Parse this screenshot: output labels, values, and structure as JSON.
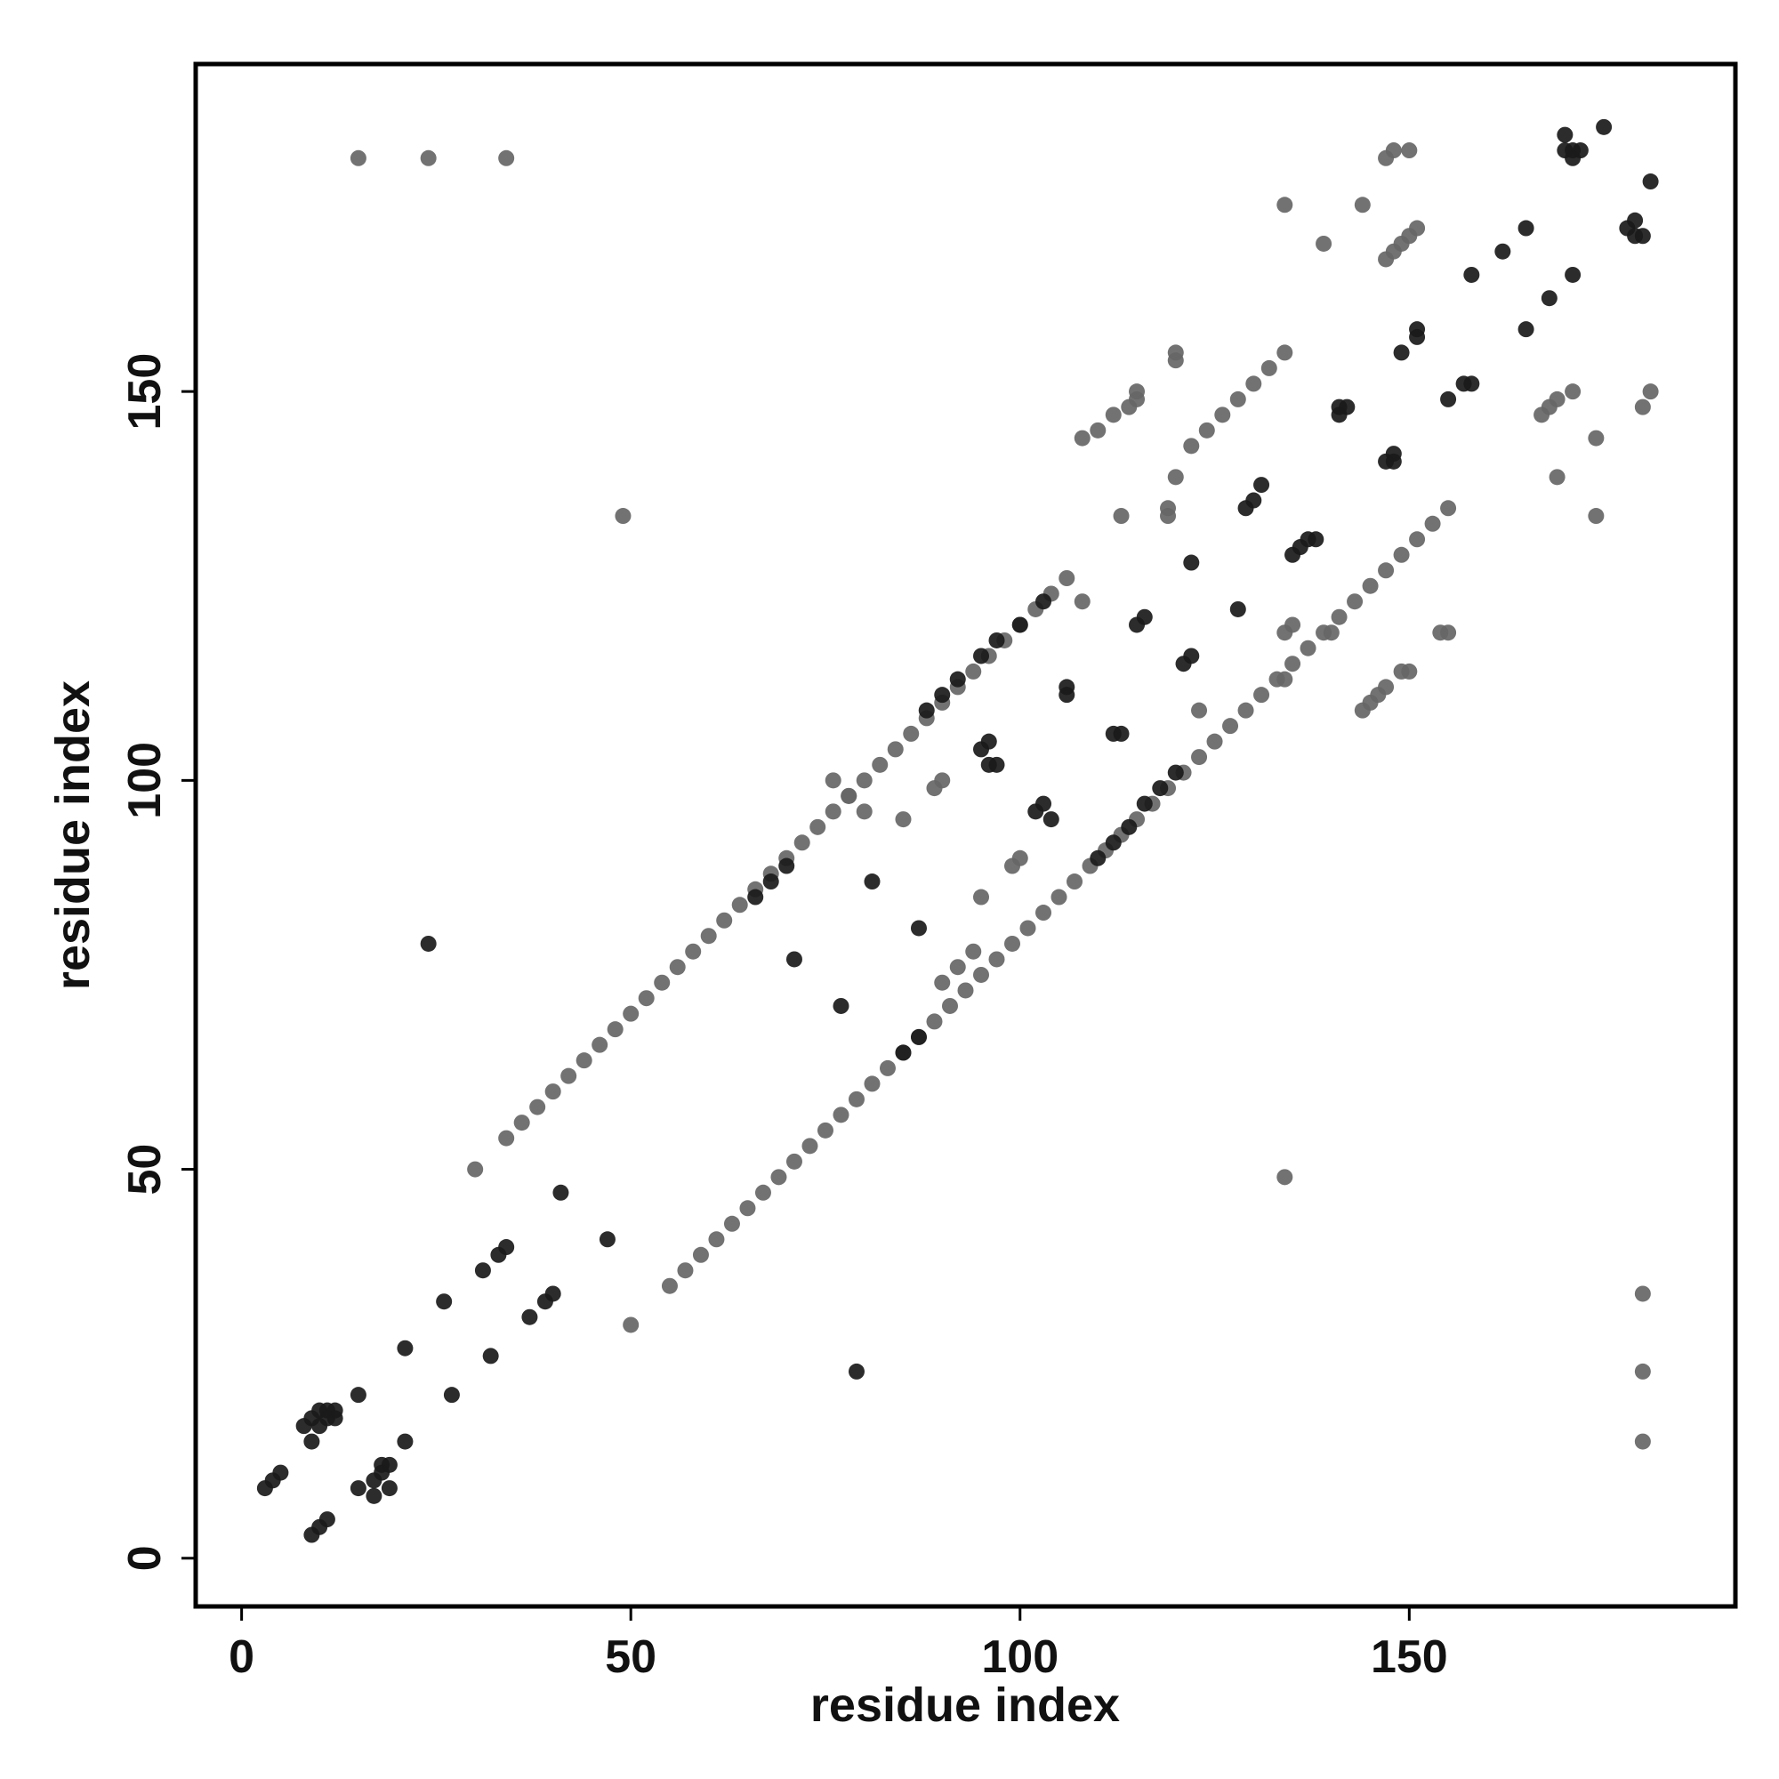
{
  "chart_data": {
    "type": "scatter",
    "x_label": "residue index",
    "y_label": "residue index",
    "xlim": [
      -5.9,
      191.9
    ],
    "ylim": [
      -6.2,
      192.1
    ],
    "xticks": [
      0,
      50,
      100,
      150
    ],
    "yticks": [
      0,
      50,
      100,
      150
    ],
    "series": [
      {
        "color": "#666666",
        "x": [
          34,
          36,
          38,
          40,
          42,
          44,
          46,
          48,
          50,
          52,
          54,
          56,
          58,
          60,
          62,
          64,
          66,
          68,
          70,
          72,
          74,
          76,
          78,
          80,
          82,
          84,
          86,
          88,
          90,
          92,
          94,
          96,
          98,
          100,
          102,
          104,
          106,
          55,
          57,
          59,
          61,
          63,
          65,
          67,
          69,
          71,
          73,
          75,
          77,
          79,
          81,
          83,
          85,
          87,
          89,
          91,
          93,
          95,
          97,
          99,
          101,
          103,
          105,
          107,
          109,
          111,
          113,
          115,
          117,
          119,
          121,
          123,
          125,
          127,
          129,
          131,
          133,
          135,
          137,
          139,
          141,
          143,
          145,
          147,
          149,
          151,
          153,
          155,
          122,
          124,
          126,
          128,
          130,
          132,
          134,
          108,
          110,
          112,
          114,
          15,
          24,
          34,
          49,
          30,
          50,
          134,
          180,
          180,
          180,
          134,
          144,
          139,
          147,
          148,
          150,
          147,
          148,
          149,
          150,
          151,
          167,
          168,
          169,
          171,
          180,
          181,
          169,
          174,
          174,
          134,
          135,
          134,
          140,
          144,
          145,
          146,
          147,
          149,
          150,
          154,
          155,
          119,
          119,
          120,
          120,
          120,
          115,
          115,
          123,
          89,
          90,
          85,
          95,
          99,
          100,
          108,
          113,
          76,
          78,
          80,
          90,
          92,
          94
        ],
        "y": [
          54,
          56,
          58,
          60,
          62,
          64,
          66,
          68,
          70,
          72,
          74,
          76,
          78,
          80,
          82,
          84,
          86,
          88,
          90,
          92,
          94,
          96,
          98,
          100,
          102,
          104,
          106,
          108,
          110,
          112,
          114,
          116,
          118,
          120,
          122,
          124,
          126,
          35,
          37,
          39,
          41,
          43,
          45,
          47,
          49,
          51,
          53,
          55,
          57,
          59,
          61,
          63,
          65,
          67,
          69,
          71,
          73,
          75,
          77,
          79,
          81,
          83,
          85,
          87,
          89,
          91,
          93,
          95,
          97,
          99,
          101,
          103,
          105,
          107,
          109,
          111,
          113,
          115,
          117,
          119,
          121,
          123,
          125,
          127,
          129,
          131,
          133,
          135,
          143,
          145,
          147,
          149,
          151,
          153,
          155,
          144,
          145,
          147,
          148,
          180,
          180,
          180,
          134,
          50,
          30,
          49,
          15,
          24,
          34,
          174,
          174,
          169,
          180,
          181,
          181,
          167,
          168,
          169,
          170,
          171,
          147,
          148,
          149,
          150,
          148,
          150,
          139,
          144,
          134,
          119,
          120,
          113,
          119,
          109,
          110,
          111,
          112,
          114,
          114,
          119,
          119,
          134,
          135,
          139,
          154,
          155,
          149,
          150,
          109,
          99,
          100,
          95,
          85,
          89,
          90,
          123,
          134,
          100,
          98,
          96,
          74,
          76,
          78
        ]
      },
      {
        "color": "#1a1a1a",
        "x": [
          3,
          4,
          5,
          9,
          10,
          11,
          8,
          9,
          10,
          11,
          12,
          9,
          10,
          11,
          12,
          15,
          17,
          17,
          18,
          18,
          19,
          19,
          21,
          15,
          21,
          27,
          26,
          32,
          31,
          33,
          34,
          37,
          39,
          40,
          41,
          47,
          24,
          79,
          71,
          77,
          81,
          87,
          95,
          96,
          96,
          97,
          102,
          103,
          104,
          106,
          106,
          112,
          113,
          115,
          116,
          121,
          122,
          122,
          128,
          129,
          130,
          131,
          135,
          136,
          137,
          138,
          141,
          141,
          142,
          147,
          148,
          148,
          149,
          151,
          151,
          155,
          157,
          158,
          158,
          162,
          165,
          165,
          168,
          171,
          171,
          170,
          171,
          172,
          170,
          175,
          178,
          179,
          179,
          180,
          181,
          66,
          68,
          70,
          88,
          90,
          92,
          95,
          97,
          100,
          103,
          85,
          87,
          110,
          112,
          114,
          116,
          118,
          120
        ],
        "y": [
          9,
          10,
          11,
          3,
          4,
          5,
          17,
          18,
          19,
          19,
          19,
          15,
          17,
          18,
          18,
          9,
          8,
          10,
          11,
          12,
          9,
          12,
          15,
          21,
          27,
          21,
          33,
          26,
          37,
          39,
          40,
          31,
          33,
          34,
          47,
          41,
          79,
          24,
          77,
          71,
          87,
          81,
          104,
          105,
          102,
          102,
          96,
          97,
          95,
          112,
          111,
          106,
          106,
          120,
          121,
          115,
          116,
          128,
          122,
          135,
          136,
          138,
          129,
          130,
          131,
          131,
          147,
          148,
          148,
          141,
          141,
          142,
          155,
          157,
          158,
          149,
          151,
          151,
          165,
          168,
          158,
          171,
          162,
          165,
          180,
          181,
          181,
          181,
          183,
          184,
          171,
          172,
          170,
          170,
          177,
          85,
          87,
          89,
          109,
          111,
          113,
          116,
          118,
          120,
          123,
          65,
          67,
          90,
          92,
          94,
          97,
          99,
          101
        ]
      }
    ]
  }
}
